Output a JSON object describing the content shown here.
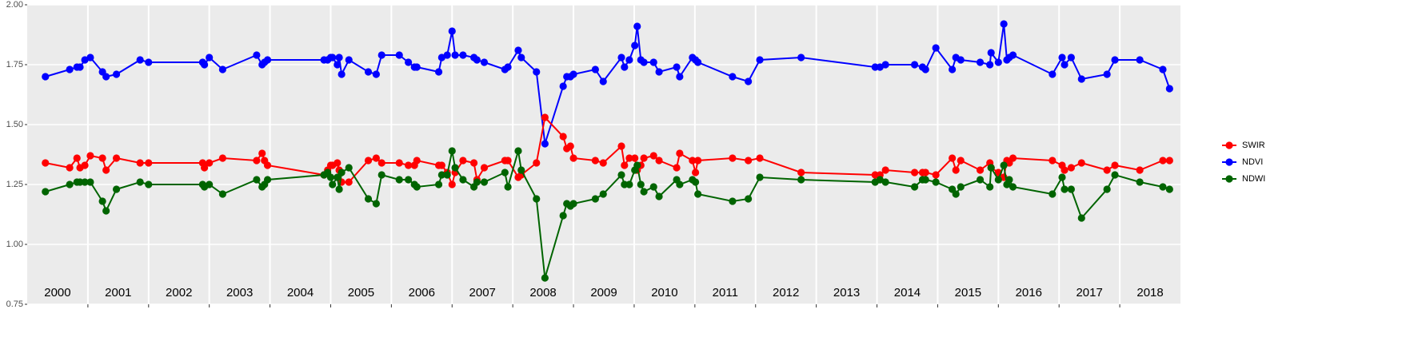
{
  "chart_data": {
    "type": "line",
    "x": [
      2000.3,
      2000.7,
      2000.82,
      2000.87,
      2000.95,
      2001.04,
      2001.24,
      2001.3,
      2001.47,
      2001.86,
      2002.0,
      2002.89,
      2002.92,
      2003.0,
      2003.22,
      2003.78,
      2003.87,
      2003.91,
      2003.96,
      2004.89,
      2004.95,
      2005.0,
      2005.03,
      2005.11,
      2005.14,
      2005.18,
      2005.3,
      2005.62,
      2005.75,
      2005.84,
      2006.13,
      2006.28,
      2006.38,
      2006.42,
      2006.78,
      2006.83,
      2006.92,
      2007.0,
      2007.05,
      2007.18,
      2007.36,
      2007.41,
      2007.53,
      2007.87,
      2007.92,
      2008.09,
      2008.14,
      2008.39,
      2008.53,
      2008.83,
      2008.89,
      2008.95,
      2009.0,
      2009.36,
      2009.49,
      2009.79,
      2009.84,
      2009.92,
      2010.01,
      2010.05,
      2010.11,
      2010.16,
      2010.32,
      2010.41,
      2010.7,
      2010.75,
      2010.96,
      2011.01,
      2011.05,
      2011.62,
      2011.88,
      2012.07,
      2012.75,
      2013.97,
      2014.05,
      2014.14,
      2014.62,
      2014.75,
      2014.8,
      2014.97,
      2015.24,
      2015.3,
      2015.38,
      2015.7,
      2015.86,
      2015.88,
      2016.0,
      2016.09,
      2016.14,
      2016.18,
      2016.24,
      2016.89,
      2017.05,
      2017.09,
      2017.2,
      2017.37,
      2017.79,
      2017.92,
      2018.33,
      2018.71,
      2018.82
    ],
    "series": [
      {
        "name": "NDVI",
        "color": "#0000ff",
        "values": [
          1.7,
          1.73,
          1.74,
          1.74,
          1.77,
          1.78,
          1.72,
          1.7,
          1.71,
          1.77,
          1.76,
          1.76,
          1.75,
          1.78,
          1.73,
          1.79,
          1.75,
          1.76,
          1.77,
          1.77,
          1.77,
          1.78,
          1.78,
          1.75,
          1.78,
          1.71,
          1.77,
          1.72,
          1.71,
          1.79,
          1.79,
          1.76,
          1.74,
          1.74,
          1.72,
          1.78,
          1.79,
          1.89,
          1.79,
          1.79,
          1.78,
          1.77,
          1.76,
          1.73,
          1.74,
          1.81,
          1.78,
          1.72,
          1.42,
          1.66,
          1.7,
          1.7,
          1.71,
          1.73,
          1.68,
          1.78,
          1.74,
          1.77,
          1.83,
          1.91,
          1.77,
          1.76,
          1.76,
          1.72,
          1.74,
          1.7,
          1.78,
          1.77,
          1.76,
          1.7,
          1.68,
          1.77,
          1.78,
          1.74,
          1.74,
          1.75,
          1.75,
          1.74,
          1.73,
          1.82,
          1.73,
          1.78,
          1.77,
          1.76,
          1.75,
          1.8,
          1.76,
          1.92,
          1.77,
          1.78,
          1.79,
          1.71,
          1.78,
          1.75,
          1.78,
          1.69,
          1.71,
          1.77,
          1.77,
          1.73,
          1.65
        ]
      },
      {
        "name": "SWIR",
        "color": "#ff0000",
        "values": [
          1.34,
          1.32,
          1.36,
          1.32,
          1.33,
          1.37,
          1.36,
          1.31,
          1.36,
          1.34,
          1.34,
          1.34,
          1.32,
          1.34,
          1.36,
          1.35,
          1.38,
          1.35,
          1.33,
          1.29,
          1.31,
          1.33,
          1.33,
          1.34,
          1.31,
          1.26,
          1.26,
          1.35,
          1.36,
          1.34,
          1.34,
          1.33,
          1.33,
          1.35,
          1.33,
          1.33,
          1.3,
          1.25,
          1.3,
          1.35,
          1.34,
          1.27,
          1.32,
          1.35,
          1.35,
          1.28,
          1.29,
          1.34,
          1.53,
          1.45,
          1.4,
          1.41,
          1.36,
          1.35,
          1.34,
          1.41,
          1.33,
          1.36,
          1.36,
          1.31,
          1.33,
          1.36,
          1.37,
          1.35,
          1.32,
          1.38,
          1.35,
          1.3,
          1.35,
          1.36,
          1.35,
          1.36,
          1.3,
          1.29,
          1.29,
          1.31,
          1.3,
          1.3,
          1.3,
          1.29,
          1.36,
          1.31,
          1.35,
          1.31,
          1.34,
          1.32,
          1.3,
          1.28,
          1.35,
          1.34,
          1.36,
          1.35,
          1.33,
          1.31,
          1.32,
          1.34,
          1.31,
          1.33,
          1.31,
          1.35,
          1.35
        ]
      },
      {
        "name": "NDWI",
        "color": "#006400",
        "values": [
          1.22,
          1.25,
          1.26,
          1.26,
          1.26,
          1.26,
          1.18,
          1.14,
          1.23,
          1.26,
          1.25,
          1.25,
          1.24,
          1.25,
          1.21,
          1.27,
          1.24,
          1.25,
          1.27,
          1.29,
          1.3,
          1.28,
          1.25,
          1.28,
          1.23,
          1.3,
          1.32,
          1.19,
          1.17,
          1.29,
          1.27,
          1.27,
          1.25,
          1.24,
          1.25,
          1.29,
          1.29,
          1.39,
          1.32,
          1.27,
          1.24,
          1.26,
          1.26,
          1.3,
          1.24,
          1.39,
          1.31,
          1.19,
          0.86,
          1.12,
          1.17,
          1.16,
          1.17,
          1.19,
          1.21,
          1.29,
          1.25,
          1.25,
          1.31,
          1.33,
          1.25,
          1.22,
          1.24,
          1.2,
          1.27,
          1.25,
          1.27,
          1.26,
          1.21,
          1.18,
          1.19,
          1.28,
          1.27,
          1.26,
          1.27,
          1.26,
          1.24,
          1.27,
          1.27,
          1.26,
          1.23,
          1.21,
          1.24,
          1.27,
          1.24,
          1.32,
          1.27,
          1.33,
          1.25,
          1.27,
          1.24,
          1.21,
          1.28,
          1.23,
          1.23,
          1.11,
          1.23,
          1.29,
          1.26,
          1.24,
          1.23
        ]
      }
    ],
    "legend_order": [
      "SWIR",
      "NDVI",
      "NDWI"
    ],
    "legend_position": "right",
    "year_labels": [
      "2000",
      "2001",
      "2002",
      "2003",
      "2004",
      "2005",
      "2006",
      "2007",
      "2008",
      "2009",
      "2010",
      "2011",
      "2012",
      "2013",
      "2014",
      "2015",
      "2016",
      "2017",
      "2018"
    ],
    "xlim": [
      2000,
      2019
    ],
    "xticks": [
      2001,
      2002,
      2003,
      2004,
      2005,
      2006,
      2007,
      2008,
      2009,
      2010,
      2011,
      2012,
      2013,
      2014,
      2015,
      2016,
      2017,
      2018
    ],
    "ylim": [
      0.75,
      2.0
    ],
    "yticks": [
      {
        "value": 0.75,
        "label": "0.75"
      },
      {
        "value": 1.0,
        "label": "1.00"
      },
      {
        "value": 1.25,
        "label": "1.25"
      },
      {
        "value": 1.5,
        "label": "1.50"
      },
      {
        "value": 1.75,
        "label": "1.75"
      },
      {
        "value": 2.0,
        "label": "2.00"
      }
    ],
    "grid": true
  }
}
